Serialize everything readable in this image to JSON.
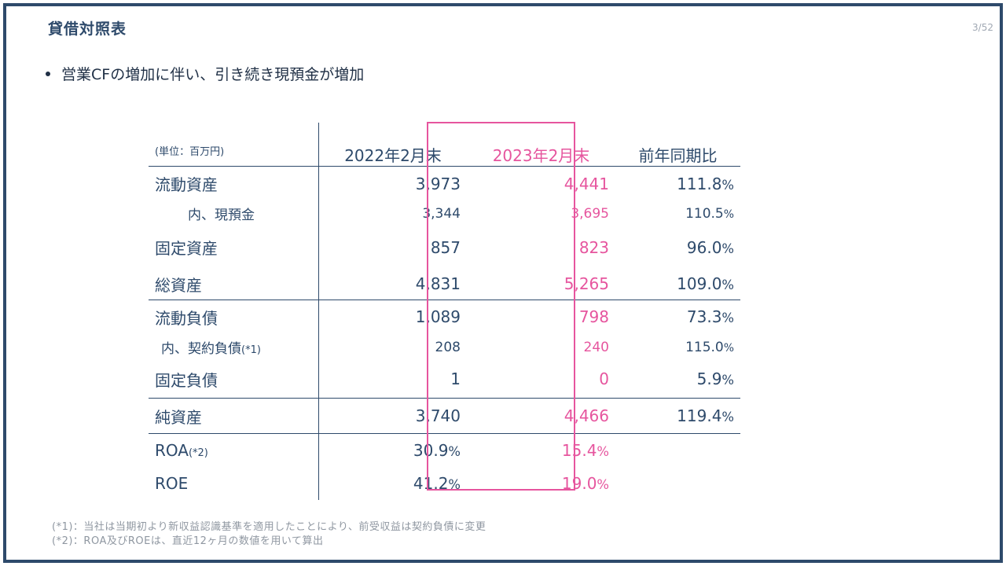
{
  "header": {
    "title": "貸借対照表",
    "page": "3/52"
  },
  "bullet": "営業CFの増加に伴い、引き続き現預金が増加",
  "table": {
    "unit_label": "(単位：百万円)",
    "columns": [
      "2022年2月末",
      "2023年2月末",
      "前年同期比"
    ],
    "rows": [
      {
        "label": "流動資産",
        "y1": "3,973",
        "y2": "4,441",
        "yoy": "111.8",
        "yoy_unit": "%"
      },
      {
        "label": "内、現預金",
        "y1": "3,344",
        "y2": "3,695",
        "yoy": "110.5",
        "yoy_unit": "%"
      },
      {
        "label": "固定資産",
        "y1": "857",
        "y2": "823",
        "yoy": "96.0",
        "yoy_unit": "%"
      },
      {
        "label": "総資産",
        "y1": "4,831",
        "y2": "5,265",
        "yoy": "109.0",
        "yoy_unit": "%"
      },
      {
        "label": "流動負債",
        "y1": "1,089",
        "y2": "798",
        "yoy": "73.3",
        "yoy_unit": "%"
      },
      {
        "label": "内、契約負債",
        "label_note": "(*1)",
        "y1": "208",
        "y2": "240",
        "yoy": "115.0",
        "yoy_unit": "%"
      },
      {
        "label": "固定負債",
        "y1": "1",
        "y2": "0",
        "yoy": "5.9",
        "yoy_unit": "%"
      },
      {
        "label": "純資産",
        "y1": "3,740",
        "y2": "4,466",
        "yoy": "119.4",
        "yoy_unit": "%"
      },
      {
        "label": "ROA",
        "label_note": "(*2)",
        "y1": "30.9",
        "y1_unit": "%",
        "y2": "15.4",
        "y2_unit": "%"
      },
      {
        "label": "ROE",
        "y1": "41.2",
        "y1_unit": "%",
        "y2": "19.0",
        "y2_unit": "%"
      }
    ]
  },
  "footnotes": [
    "(*1)：当社は当期初より新収益認識基準を適用したことにより、前受収益は契約負債に変更",
    "(*2)：ROA及びROEは、直近12ヶ月の数値を用いて算出"
  ],
  "colors": {
    "navy": "#2e4a6b",
    "pink": "#e6559e"
  }
}
